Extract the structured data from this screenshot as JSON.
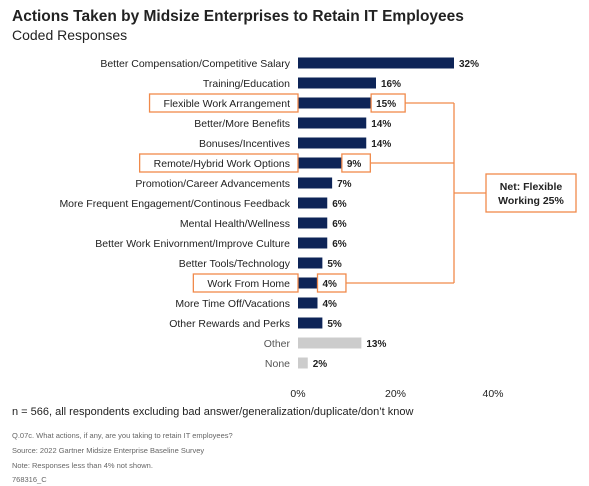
{
  "header": {
    "title": "Actions Taken by Midsize Enterprises to Retain IT Employees",
    "subtitle": "Coded Responses"
  },
  "chart_data": {
    "type": "bar",
    "orientation": "horizontal",
    "categories": [
      "Better Compensation/Competitive Salary",
      "Training/Education",
      "Flexible Work Arrangement",
      "Better/More Benefits",
      "Bonuses/Incentives",
      "Remote/Hybrid Work Options",
      "Promotion/Career Advancements",
      "More Frequent Engagement/Continous Feedback",
      "Mental Health/Wellness",
      "Better Work Enivornment/Improve Culture",
      "Better Tools/Technology",
      "Work From Home",
      "More Time Off/Vacations",
      "Other Rewards and Perks",
      "Other",
      "None"
    ],
    "values": [
      32,
      16,
      15,
      14,
      14,
      9,
      7,
      6,
      6,
      6,
      5,
      4,
      4,
      5,
      13,
      2
    ],
    "value_labels": [
      "32%",
      "16%",
      "15%",
      "14%",
      "14%",
      "9%",
      "7%",
      "6%",
      "6%",
      "6%",
      "5%",
      "4%",
      "4%",
      "5%",
      "13%",
      "2%"
    ],
    "highlighted": [
      "Flexible Work Arrangement",
      "Remote/Hybrid Work Options",
      "Work From Home"
    ],
    "muted": [
      "Other",
      "None"
    ],
    "xlim": [
      0,
      40
    ],
    "xticks": [
      0,
      20,
      40
    ],
    "xtick_labels": [
      "0%",
      "20%",
      "40%"
    ],
    "annotation": "Net: Flexible Working 25%",
    "annotation_lines": [
      "Net: Flexible",
      "Working 25%"
    ],
    "colors": {
      "bar": "#0d2457",
      "muted_bar": "#cccccc",
      "highlight": "#f08a4b"
    }
  },
  "footer": {
    "n_line": "n = 566, all respondents excluding bad answer/generalization/duplicate/don’t know",
    "question": "Q.07c. What actions, if any, are you taking to retain IT employees?",
    "source": "Source: 2022 Gartner Midsize Enterprise Baseline Survey",
    "note": "Note: Responses less than 4% not shown.",
    "id": "768316_C"
  }
}
